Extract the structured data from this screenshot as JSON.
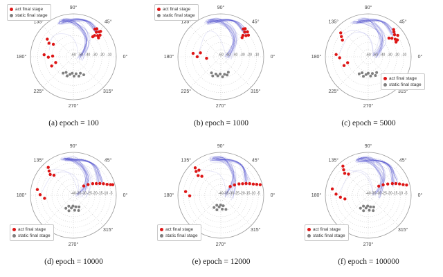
{
  "page": {
    "background": "#ffffff"
  },
  "legend": {
    "act_label": "act final stage",
    "static_label": "static final stage"
  },
  "style": {
    "act_color": "#dd1515",
    "static_color": "#7f7f7f",
    "trajectory_rgb": "60,60,200",
    "grid_color": "#c9c9c9",
    "outer_ring_color": "#999999",
    "theta_label_color": "#444444",
    "r_tick_label_color": "#555555"
  },
  "chart_data": [
    {
      "type": "polar-scatter",
      "caption": "(a) epoch = 100",
      "theta_tick_labels": [
        "0°",
        "45°",
        "90°",
        "135°",
        "180°",
        "225°",
        "270°",
        "315°"
      ],
      "r_domain": [
        -60,
        0
      ],
      "r_ticks": [
        -60,
        -50,
        -40,
        -30,
        -20,
        -10
      ],
      "r_tick_labels": [
        "-60",
        "-50",
        "-40",
        "-30",
        "-20",
        "-10"
      ],
      "legend_pos": "tl",
      "series": {
        "act": [
          [
            44,
            -10
          ],
          [
            47,
            -13
          ],
          [
            41,
            -15
          ],
          [
            50,
            -9
          ],
          [
            45,
            -18
          ],
          [
            39,
            -12
          ],
          [
            52,
            -11
          ],
          [
            43,
            -8
          ],
          [
            46,
            -21
          ],
          [
            37,
            -16
          ],
          [
            146,
            -16
          ],
          [
            151,
            -21
          ],
          [
            148,
            -27
          ],
          [
            176,
            -19
          ],
          [
            181,
            -25
          ],
          [
            178,
            -31
          ],
          [
            203,
            -27
          ],
          [
            198,
            -34
          ]
        ],
        "static": [
          [
            238,
            -33
          ],
          [
            245,
            -36
          ],
          [
            252,
            -32
          ],
          [
            259,
            -35
          ],
          [
            266,
            -37
          ],
          [
            272,
            -33
          ],
          [
            279,
            -36
          ],
          [
            286,
            -32
          ],
          [
            293,
            -35
          ],
          [
            300,
            -31
          ]
        ]
      },
      "trajectory_bundle": {
        "count": 16,
        "start_theta": -2,
        "start_r": -50,
        "apex_theta": 100,
        "end_theta": 46,
        "end_r": -12
      },
      "side_trajectory_ends": [
        [
          165,
          -25
        ]
      ]
    },
    {
      "type": "polar-scatter",
      "caption": "(b) epoch = 1000",
      "theta_tick_labels": [
        "0°",
        "45°",
        "90°",
        "135°",
        "180°",
        "225°",
        "270°",
        "315°"
      ],
      "r_domain": [
        -60,
        0
      ],
      "r_ticks": [
        -60,
        -50,
        -40,
        -30,
        -20,
        -10
      ],
      "r_tick_labels": [
        "-60",
        "-50",
        "-40",
        "-30",
        "-20",
        "-10"
      ],
      "legend_pos": "tl",
      "series": {
        "act": [
          [
            43,
            -9
          ],
          [
            46,
            -12
          ],
          [
            40,
            -14
          ],
          [
            49,
            -8
          ],
          [
            44,
            -17
          ],
          [
            38,
            -11
          ],
          [
            51,
            -10
          ],
          [
            42,
            -20
          ],
          [
            173,
            -21
          ],
          [
            180,
            -27
          ],
          [
            169,
            -31
          ],
          [
            186,
            -40
          ]
        ],
        "static": [
          [
            240,
            -34
          ],
          [
            247,
            -31
          ],
          [
            254,
            -35
          ],
          [
            261,
            -33
          ],
          [
            268,
            -36
          ],
          [
            275,
            -32
          ],
          [
            282,
            -35
          ],
          [
            289,
            -33
          ],
          [
            296,
            -36
          ]
        ]
      },
      "trajectory_bundle": {
        "count": 16,
        "start_theta": 0,
        "start_r": -50,
        "apex_theta": 98,
        "end_theta": 45,
        "end_r": -11
      },
      "side_trajectory_ends": [
        [
          178,
          -28
        ]
      ]
    },
    {
      "type": "polar-scatter",
      "caption": "(c) epoch = 5000",
      "theta_tick_labels": [
        "0°",
        "45°",
        "90°",
        "135°",
        "180°",
        "225°",
        "270°",
        "315°"
      ],
      "r_domain": [
        -60,
        0
      ],
      "r_ticks": [
        -60,
        -50,
        -40,
        -30,
        -20,
        -10
      ],
      "r_tick_labels": [
        "-60",
        "-50",
        "-40",
        "-30",
        "-20",
        "-10"
      ],
      "legend_pos": "cr",
      "series": {
        "act": [
          [
            36,
            -9
          ],
          [
            40,
            -12
          ],
          [
            33,
            -15
          ],
          [
            44,
            -10
          ],
          [
            38,
            -18
          ],
          [
            30,
            -13
          ],
          [
            47,
            -8
          ],
          [
            42,
            -21
          ],
          [
            28,
            -16
          ],
          [
            139,
            -9
          ],
          [
            143,
            -13
          ],
          [
            147,
            -17
          ],
          [
            176,
            -15
          ],
          [
            182,
            -20
          ],
          [
            200,
            -24
          ],
          [
            196,
            -30
          ]
        ],
        "static": [
          [
            242,
            -33
          ],
          [
            249,
            -36
          ],
          [
            256,
            -32
          ],
          [
            263,
            -35
          ],
          [
            270,
            -37
          ],
          [
            277,
            -33
          ],
          [
            284,
            -36
          ],
          [
            291,
            -32
          ],
          [
            298,
            -35
          ]
        ]
      },
      "trajectory_bundle": {
        "count": 16,
        "start_theta": 2,
        "start_r": -50,
        "apex_theta": 100,
        "end_theta": 40,
        "end_r": -12
      },
      "side_trajectory_ends": [
        [
          141,
          -12
        ],
        [
          178,
          -18
        ]
      ]
    },
    {
      "type": "polar-scatter",
      "caption": "(d) epoch = 10000",
      "theta_tick_labels": [
        "0°",
        "45°",
        "90°",
        "135°",
        "180°",
        "225°",
        "270°",
        "315°"
      ],
      "r_domain": [
        -40,
        0
      ],
      "r_ticks": [
        -40,
        -35,
        -30,
        -25,
        -20,
        -15,
        -10,
        -5
      ],
      "r_tick_labels": [
        "-40",
        "-35",
        "-30",
        "-25",
        "-20",
        "-15",
        "-10",
        "-5"
      ],
      "legend_pos": "bl",
      "series": {
        "act": [
          [
            42,
            -27
          ],
          [
            36,
            -23
          ],
          [
            31,
            -19
          ],
          [
            27,
            -16
          ],
          [
            24,
            -13
          ],
          [
            21,
            -10
          ],
          [
            18,
            -7
          ],
          [
            16,
            -4
          ],
          [
            15,
            -2
          ],
          [
            132,
            -5
          ],
          [
            135,
            -8
          ],
          [
            138,
            -11
          ],
          [
            134,
            -14
          ],
          [
            171,
            -6
          ],
          [
            179,
            -9
          ],
          [
            186,
            -13
          ]
        ],
        "static": [
          [
            240,
            -26
          ],
          [
            247,
            -29
          ],
          [
            254,
            -25
          ],
          [
            261,
            -28
          ],
          [
            268,
            -30
          ],
          [
            275,
            -26
          ],
          [
            282,
            -29
          ],
          [
            289,
            -25
          ],
          [
            296,
            -28
          ]
        ]
      },
      "trajectory_bundle": {
        "count": 16,
        "start_theta": 0,
        "start_r": -33,
        "apex_theta": 95,
        "end_theta": 24,
        "end_r": -12
      },
      "side_trajectory_ends": [
        [
          134,
          -8
        ],
        [
          176,
          -10
        ]
      ]
    },
    {
      "type": "polar-scatter",
      "caption": "(e) epoch = 12000",
      "theta_tick_labels": [
        "0°",
        "45°",
        "90°",
        "135°",
        "180°",
        "225°",
        "270°",
        "315°"
      ],
      "r_domain": [
        -40,
        0
      ],
      "r_ticks": [
        -40,
        -35,
        -30,
        -25,
        -20,
        -15,
        -10,
        -5
      ],
      "r_tick_labels": [
        "-40",
        "-35",
        "-30",
        "-25",
        "-20",
        "-15",
        "-10",
        "-5"
      ],
      "legend_pos": "bl",
      "series": {
        "act": [
          [
            43,
            -28
          ],
          [
            37,
            -24
          ],
          [
            32,
            -20
          ],
          [
            28,
            -17
          ],
          [
            25,
            -14
          ],
          [
            22,
            -11
          ],
          [
            19,
            -8
          ],
          [
            17,
            -5
          ],
          [
            15,
            -2
          ],
          [
            133,
            -5
          ],
          [
            136,
            -8
          ],
          [
            139,
            -12
          ],
          [
            135,
            -15
          ],
          [
            131,
            -9
          ],
          [
            174,
            -7
          ],
          [
            181,
            -11
          ]
        ],
        "static": [
          [
            241,
            -27
          ],
          [
            248,
            -30
          ],
          [
            255,
            -26
          ],
          [
            262,
            -29
          ],
          [
            269,
            -31
          ],
          [
            276,
            -27
          ],
          [
            283,
            -30
          ],
          [
            290,
            -26
          ]
        ]
      },
      "trajectory_bundle": {
        "count": 16,
        "start_theta": 2,
        "start_r": -33,
        "apex_theta": 94,
        "end_theta": 25,
        "end_r": -12
      },
      "side_trajectory_ends": [
        [
          135,
          -9
        ]
      ]
    },
    {
      "type": "polar-scatter",
      "caption": "(f) epoch = 100000",
      "theta_tick_labels": [
        "0°",
        "45°",
        "90°",
        "135°",
        "180°",
        "225°",
        "270°",
        "315°"
      ],
      "r_domain": [
        -40,
        0
      ],
      "r_ticks": [
        -40,
        -35,
        -30,
        -25,
        -20,
        -15,
        -10,
        -5
      ],
      "r_tick_labels": [
        "-40",
        "-35",
        "-30",
        "-25",
        "-20",
        "-15",
        "-10",
        "-5"
      ],
      "legend_pos": "bl",
      "series": {
        "act": [
          [
            41,
            -27
          ],
          [
            35,
            -23
          ],
          [
            30,
            -19
          ],
          [
            26,
            -15
          ],
          [
            23,
            -12
          ],
          [
            20,
            -9
          ],
          [
            17,
            -6
          ],
          [
            15,
            -3
          ],
          [
            131,
            -4
          ],
          [
            134,
            -7
          ],
          [
            137,
            -10
          ],
          [
            133,
            -13
          ],
          [
            170,
            -6
          ],
          [
            178,
            -10
          ],
          [
            184,
            -14
          ],
          [
            189,
            -18
          ]
        ],
        "static": [
          [
            239,
            -26
          ],
          [
            246,
            -29
          ],
          [
            253,
            -25
          ],
          [
            260,
            -28
          ],
          [
            267,
            -30
          ],
          [
            274,
            -26
          ],
          [
            281,
            -29
          ],
          [
            288,
            -25
          ],
          [
            295,
            -28
          ]
        ]
      },
      "trajectory_bundle": {
        "count": 16,
        "start_theta": 0,
        "start_r": -33,
        "apex_theta": 96,
        "end_theta": 23,
        "end_r": -12
      },
      "side_trajectory_ends": [
        [
          133,
          -8
        ],
        [
          180,
          -12
        ]
      ]
    }
  ]
}
